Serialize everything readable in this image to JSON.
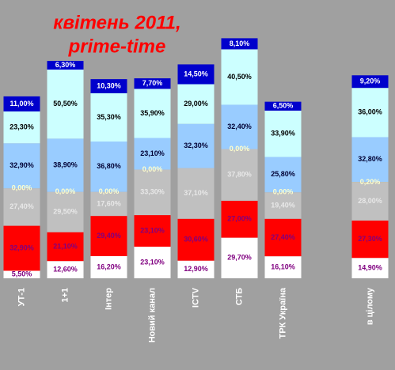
{
  "chart_data": {
    "type": "stacked-bar",
    "title": [
      "квітень 2011,",
      "prime-time"
    ],
    "categories": [
      "УТ-1",
      "1+1",
      "Інтер",
      "Новий канал",
      "ICTV",
      "СТБ",
      "ТРК Україна",
      null,
      "в цілому"
    ],
    "ylim": [
      0,
      200
    ],
    "series": [
      {
        "color": "#ffffff",
        "label_color": "#800080",
        "values": [
          5.5,
          12.6,
          16.2,
          23.1,
          12.9,
          29.7,
          16.1,
          null,
          14.9
        ],
        "value_labels": [
          "5,50%",
          "12,60%",
          "16,20%",
          "23,10%",
          "12,90%",
          "29,70%",
          "16,10%",
          null,
          "14,90%"
        ]
      },
      {
        "color": "#ff0000",
        "label_color": "#800080",
        "values": [
          32.9,
          21.1,
          29.4,
          23.1,
          30.6,
          27.0,
          27.4,
          null,
          27.3
        ],
        "value_labels": [
          "32,90%",
          "21,10%",
          "29,40%",
          "23,10%",
          "30,60%",
          "27,00%",
          "27,40%",
          null,
          "27,30%"
        ]
      },
      {
        "color": "#c0c0c0",
        "label_color": "#e8e8e8",
        "values": [
          27.4,
          29.5,
          17.6,
          33.3,
          37.1,
          37.8,
          19.4,
          null,
          28.0
        ],
        "value_labels": [
          "27,40%",
          "29,50%",
          "17,60%",
          "33,30%",
          "37,10%",
          "37,80%",
          "19,40%",
          null,
          "28,00%"
        ]
      },
      {
        "color": "#ffcc66",
        "label_color": "#ffffcc",
        "values": [
          0.0,
          0.0,
          0.0,
          0.0,
          null,
          0.0,
          0.0,
          null,
          0.2
        ],
        "value_labels": [
          "0,00%",
          "0,00%",
          "0,00%",
          "0,00%",
          null,
          "0,00%",
          "0,00%",
          null,
          "0,20%"
        ]
      },
      {
        "color": "#99ccff",
        "label_color": "#000033",
        "values": [
          32.9,
          38.9,
          36.8,
          23.1,
          32.3,
          32.4,
          25.8,
          null,
          32.8
        ],
        "value_labels": [
          "32,90%",
          "38,90%",
          "36,80%",
          "23,10%",
          "32,30%",
          "32,40%",
          "25,80%",
          null,
          "32,80%"
        ]
      },
      {
        "color": "#ccffff",
        "label_color": "#000000",
        "values": [
          23.3,
          50.5,
          35.3,
          35.9,
          29.0,
          40.5,
          33.9,
          null,
          36.0
        ],
        "value_labels": [
          "23,30%",
          "50,50%",
          "35,30%",
          "35,90%",
          "29,00%",
          "40,50%",
          "33,90%",
          null,
          "36,00%"
        ]
      },
      {
        "color": "#0000cc",
        "label_color": "#ffffff",
        "values": [
          11.0,
          6.3,
          10.3,
          7.7,
          14.5,
          8.1,
          6.5,
          null,
          9.2
        ],
        "value_labels": [
          "11,00%",
          "6,30%",
          "10,30%",
          "7,70%",
          "14,50%",
          "8,10%",
          "6,50%",
          null,
          "9,20%"
        ]
      }
    ]
  }
}
